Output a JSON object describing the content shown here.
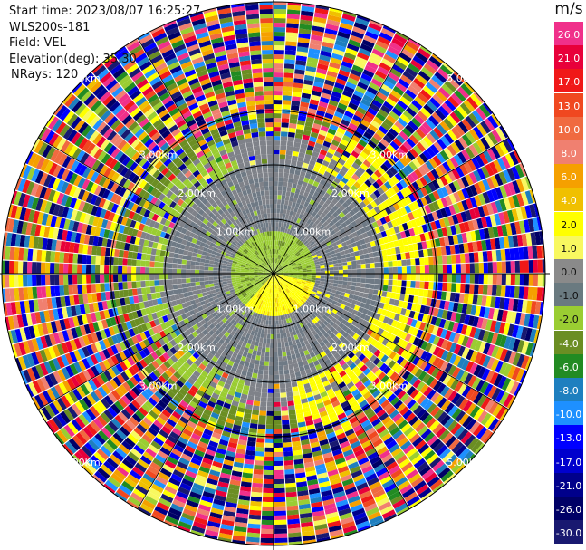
{
  "header": {
    "start_time": "Start time: 2023/08/07 16:25:27",
    "instrument": "WLS200s-181",
    "field": "Field: VEL",
    "elevation": "Elevation(deg): 35.30",
    "nrays": "NRays: 120"
  },
  "range_rings_km": [
    1,
    2,
    3,
    5
  ],
  "range_labels": [
    "1.00km",
    "2.00km",
    "3.00km",
    "5.00km"
  ],
  "colorbar": {
    "unit": "m/s",
    "levels": [
      {
        "label": "26.0",
        "color": "#f0308a"
      },
      {
        "label": "21.0",
        "color": "#e8003a"
      },
      {
        "label": "17.0",
        "color": "#f01818"
      },
      {
        "label": "13.0",
        "color": "#f04820"
      },
      {
        "label": "10.0",
        "color": "#f06a40"
      },
      {
        "label": "8.0",
        "color": "#f08070"
      },
      {
        "label": "6.0",
        "color": "#f5a000"
      },
      {
        "label": "4.0",
        "color": "#f0c000"
      },
      {
        "label": "2.0",
        "color": "#ffff00"
      },
      {
        "label": "1.0",
        "color": "#f8f860"
      },
      {
        "label": "0.0",
        "color": "#8a8a8a"
      },
      {
        "label": "-1.0",
        "color": "#6a7a80"
      },
      {
        "label": "-2.0",
        "color": "#9acd32"
      },
      {
        "label": "-4.0",
        "color": "#6b8e23"
      },
      {
        "label": "-6.0",
        "color": "#228b22"
      },
      {
        "label": "-8.0",
        "color": "#1e7fbf"
      },
      {
        "label": "-10.0",
        "color": "#1e90ff"
      },
      {
        "label": "-13.0",
        "color": "#0000ff"
      },
      {
        "label": "-17.0",
        "color": "#0000cd"
      },
      {
        "label": "-21.0",
        "color": "#00008b"
      },
      {
        "label": "-26.0",
        "color": "#000066"
      },
      {
        "label": "-30.0",
        "color": "#191970"
      }
    ]
  }
}
